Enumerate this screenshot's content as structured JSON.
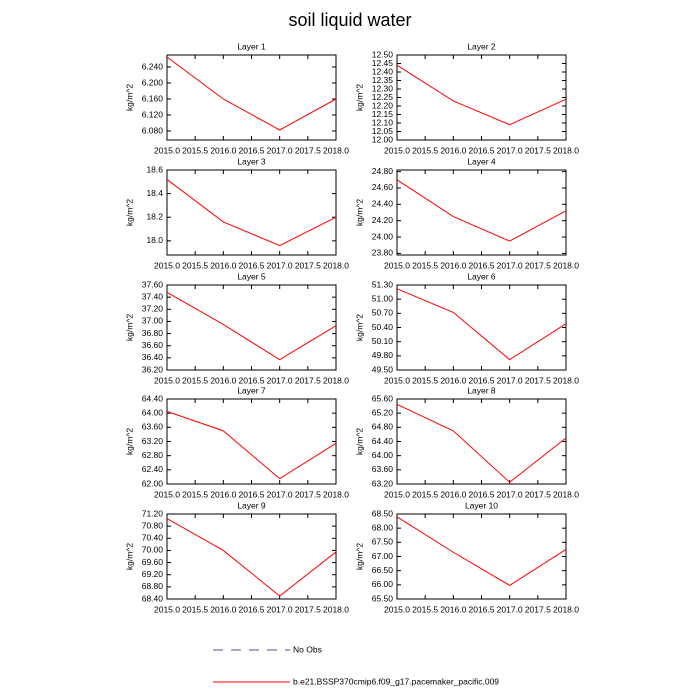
{
  "title": "soil liquid water",
  "legend": [
    {
      "label": "No Obs",
      "color": "#4b4b9b",
      "dashed": true
    },
    {
      "label": "b.e21.BSSP370cmip6.f09_g17.pacemaker_pacific.009",
      "color": "#ff0000",
      "dashed": false
    }
  ],
  "chart_data": [
    {
      "type": "line",
      "title": "Layer 1",
      "ylabel": "kg/m^2",
      "x": [
        2015,
        2016,
        2017,
        2018
      ],
      "series": [
        {
          "color": "#ff0000",
          "values": [
            6.265,
            6.16,
            6.0825,
            6.16
          ]
        }
      ],
      "xlim": [
        2015,
        2018
      ],
      "xticks": [
        {
          "value": 2015,
          "label": "2015.0"
        },
        {
          "value": 2015.5,
          "label": "2015.5"
        },
        {
          "value": 2016,
          "label": "2016.0"
        },
        {
          "value": 2016.5,
          "label": "2016.5"
        },
        {
          "value": 2017,
          "label": "2017.0"
        },
        {
          "value": 2017.5,
          "label": "2017.5"
        },
        {
          "value": 2018,
          "label": "2018.0"
        }
      ],
      "ylim": [
        6.0575,
        6.27
      ],
      "yticks": [
        {
          "value": 6.08,
          "label": "6.080"
        },
        {
          "value": 6.12,
          "label": "6.120"
        },
        {
          "value": 6.16,
          "label": "6.160"
        },
        {
          "value": 6.2,
          "label": "6.200"
        },
        {
          "value": 6.24,
          "label": "6.240"
        }
      ]
    },
    {
      "type": "line",
      "title": "Layer 2",
      "ylabel": "kg/m^2",
      "x": [
        2015,
        2016,
        2017,
        2018
      ],
      "series": [
        {
          "color": "#ff0000",
          "values": [
            12.44,
            12.23,
            12.09,
            12.24
          ]
        }
      ],
      "xlim": [
        2015,
        2018
      ],
      "xticks": [
        {
          "value": 2015,
          "label": "2015.0"
        },
        {
          "value": 2015.5,
          "label": "2015.5"
        },
        {
          "value": 2016,
          "label": "2016.0"
        },
        {
          "value": 2016.5,
          "label": "2016.5"
        },
        {
          "value": 2017,
          "label": "2017.0"
        },
        {
          "value": 2017.5,
          "label": "2017.5"
        },
        {
          "value": 2018,
          "label": "2018.0"
        }
      ],
      "ylim": [
        12.0,
        12.5
      ],
      "yticks": [
        {
          "value": 12.0,
          "label": "12.00"
        },
        {
          "value": 12.05,
          "label": "12.05"
        },
        {
          "value": 12.1,
          "label": "12.10"
        },
        {
          "value": 12.15,
          "label": "12.15"
        },
        {
          "value": 12.2,
          "label": "12.20"
        },
        {
          "value": 12.25,
          "label": "12.25"
        },
        {
          "value": 12.3,
          "label": "12.30"
        },
        {
          "value": 12.35,
          "label": "12.35"
        },
        {
          "value": 12.4,
          "label": "12.40"
        },
        {
          "value": 12.45,
          "label": "12.45"
        },
        {
          "value": 12.5,
          "label": "12.50"
        }
      ]
    },
    {
      "type": "line",
      "title": "Layer 3",
      "ylabel": "kg/m^2",
      "x": [
        2015,
        2016,
        2017,
        2018
      ],
      "series": [
        {
          "color": "#ff0000",
          "values": [
            18.52,
            18.16,
            17.96,
            18.2
          ]
        }
      ],
      "xlim": [
        2015,
        2018
      ],
      "xticks": [
        {
          "value": 2015,
          "label": "2015.0"
        },
        {
          "value": 2015.5,
          "label": "2015.5"
        },
        {
          "value": 2016,
          "label": "2016.0"
        },
        {
          "value": 2016.5,
          "label": "2016.5"
        },
        {
          "value": 2017,
          "label": "2017.0"
        },
        {
          "value": 2017.5,
          "label": "2017.5"
        },
        {
          "value": 2018,
          "label": "2018.0"
        }
      ],
      "ylim": [
        17.88,
        18.6
      ],
      "yticks": [
        {
          "value": 18,
          "label": "18.0"
        },
        18.2,
        18.4,
        18.6
      ]
    },
    {
      "type": "line",
      "title": "Layer 4",
      "ylabel": "kg/m^2",
      "x": [
        2015,
        2016,
        2017,
        2018
      ],
      "series": [
        {
          "color": "#ff0000",
          "values": [
            24.7,
            24.25,
            23.95,
            24.32
          ]
        }
      ],
      "xlim": [
        2015,
        2018
      ],
      "xticks": [
        {
          "value": 2015,
          "label": "2015.0"
        },
        {
          "value": 2015.5,
          "label": "2015.5"
        },
        {
          "value": 2016,
          "label": "2016.0"
        },
        {
          "value": 2016.5,
          "label": "2016.5"
        },
        {
          "value": 2017,
          "label": "2017.0"
        },
        {
          "value": 2017.5,
          "label": "2017.5"
        },
        {
          "value": 2018,
          "label": "2018.0"
        }
      ],
      "ylim": [
        23.78,
        24.82
      ],
      "yticks": [
        {
          "value": 23.8,
          "label": "23.80"
        },
        {
          "value": 24.0,
          "label": "24.00"
        },
        {
          "value": 24.2,
          "label": "24.20"
        },
        {
          "value": 24.4,
          "label": "24.40"
        },
        {
          "value": 24.6,
          "label": "24.60"
        },
        {
          "value": 24.8,
          "label": "24.80"
        }
      ]
    },
    {
      "type": "line",
      "title": "Layer 5",
      "ylabel": "kg/m^2",
      "x": [
        2015,
        2016,
        2017,
        2018
      ],
      "series": [
        {
          "color": "#ff0000",
          "values": [
            37.48,
            36.95,
            36.37,
            36.93
          ]
        }
      ],
      "xlim": [
        2015,
        2018
      ],
      "xticks": [
        {
          "value": 2015,
          "label": "2015.0"
        },
        {
          "value": 2015.5,
          "label": "2015.5"
        },
        {
          "value": 2016,
          "label": "2016.0"
        },
        {
          "value": 2016.5,
          "label": "2016.5"
        },
        {
          "value": 2017,
          "label": "2017.0"
        },
        {
          "value": 2017.5,
          "label": "2017.5"
        },
        {
          "value": 2018,
          "label": "2018.0"
        }
      ],
      "ylim": [
        36.2,
        37.6
      ],
      "yticks": [
        {
          "value": 36.2,
          "label": "36.20"
        },
        {
          "value": 36.4,
          "label": "36.40"
        },
        {
          "value": 36.6,
          "label": "36.60"
        },
        {
          "value": 36.8,
          "label": "36.80"
        },
        {
          "value": 37.0,
          "label": "37.00"
        },
        {
          "value": 37.2,
          "label": "37.20"
        },
        {
          "value": 37.4,
          "label": "37.40"
        },
        {
          "value": 37.6,
          "label": "37.60"
        }
      ]
    },
    {
      "type": "line",
      "title": "Layer 6",
      "ylabel": "kg/m^2",
      "x": [
        2015,
        2016,
        2017,
        2018
      ],
      "series": [
        {
          "color": "#ff0000",
          "values": [
            51.22,
            50.72,
            49.72,
            50.48
          ]
        }
      ],
      "xlim": [
        2015,
        2018
      ],
      "xticks": [
        {
          "value": 2015,
          "label": "2015.0"
        },
        {
          "value": 2015.5,
          "label": "2015.5"
        },
        {
          "value": 2016,
          "label": "2016.0"
        },
        {
          "value": 2016.5,
          "label": "2016.5"
        },
        {
          "value": 2017,
          "label": "2017.0"
        },
        {
          "value": 2017.5,
          "label": "2017.5"
        },
        {
          "value": 2018,
          "label": "2018.0"
        }
      ],
      "ylim": [
        49.5,
        51.3
      ],
      "yticks": [
        {
          "value": 49.5,
          "label": "49.50"
        },
        {
          "value": 49.8,
          "label": "49.80"
        },
        {
          "value": 50.1,
          "label": "50.10"
        },
        {
          "value": 50.4,
          "label": "50.40"
        },
        {
          "value": 50.7,
          "label": "50.70"
        },
        {
          "value": 51.0,
          "label": "51.00"
        },
        {
          "value": 51.3,
          "label": "51.30"
        }
      ]
    },
    {
      "type": "line",
      "title": "Layer 7",
      "ylabel": "kg/m^2",
      "x": [
        2015,
        2016,
        2017,
        2018
      ],
      "series": [
        {
          "color": "#ff0000",
          "values": [
            64.05,
            63.5,
            62.15,
            63.15
          ]
        }
      ],
      "xlim": [
        2015,
        2018
      ],
      "xticks": [
        {
          "value": 2015,
          "label": "2015.0"
        },
        {
          "value": 2015.5,
          "label": "2015.5"
        },
        {
          "value": 2016,
          "label": "2016.0"
        },
        {
          "value": 2016.5,
          "label": "2016.5"
        },
        {
          "value": 2017,
          "label": "2017.0"
        },
        {
          "value": 2017.5,
          "label": "2017.5"
        },
        {
          "value": 2018,
          "label": "2018.0"
        }
      ],
      "ylim": [
        62.0,
        64.4
      ],
      "yticks": [
        {
          "value": 62.0,
          "label": "62.00"
        },
        {
          "value": 62.4,
          "label": "62.40"
        },
        {
          "value": 62.8,
          "label": "62.80"
        },
        {
          "value": 63.2,
          "label": "63.20"
        },
        {
          "value": 63.6,
          "label": "63.60"
        },
        {
          "value": 64.0,
          "label": "64.00"
        },
        {
          "value": 64.4,
          "label": "64.40"
        }
      ]
    },
    {
      "type": "line",
      "title": "Layer 8",
      "ylabel": "kg/m^2",
      "x": [
        2015,
        2016,
        2017,
        2018
      ],
      "series": [
        {
          "color": "#ff0000",
          "values": [
            65.45,
            64.7,
            63.25,
            64.5
          ]
        }
      ],
      "xlim": [
        2015,
        2018
      ],
      "xticks": [
        {
          "value": 2015,
          "label": "2015.0"
        },
        {
          "value": 2015.5,
          "label": "2015.5"
        },
        {
          "value": 2016,
          "label": "2016.0"
        },
        {
          "value": 2016.5,
          "label": "2016.5"
        },
        {
          "value": 2017,
          "label": "2017.0"
        },
        {
          "value": 2017.5,
          "label": "2017.5"
        },
        {
          "value": 2018,
          "label": "2018.0"
        }
      ],
      "ylim": [
        63.2,
        65.6
      ],
      "yticks": [
        {
          "value": 63.2,
          "label": "63.20"
        },
        {
          "value": 63.6,
          "label": "63.60"
        },
        {
          "value": 64.0,
          "label": "64.00"
        },
        {
          "value": 64.4,
          "label": "64.40"
        },
        {
          "value": 64.8,
          "label": "64.80"
        },
        {
          "value": 65.2,
          "label": "65.20"
        },
        {
          "value": 65.6,
          "label": "65.60"
        }
      ]
    },
    {
      "type": "line",
      "title": "Layer 9",
      "ylabel": "kg/m^2",
      "x": [
        2015,
        2016,
        2017,
        2018
      ],
      "series": [
        {
          "color": "#ff0000",
          "values": [
            71.05,
            70.0,
            68.5,
            69.95
          ]
        }
      ],
      "xlim": [
        2015,
        2018
      ],
      "xticks": [
        {
          "value": 2015,
          "label": "2015.0"
        },
        {
          "value": 2015.5,
          "label": "2015.5"
        },
        {
          "value": 2016,
          "label": "2016.0"
        },
        {
          "value": 2016.5,
          "label": "2016.5"
        },
        {
          "value": 2017,
          "label": "2017.0"
        },
        {
          "value": 2017.5,
          "label": "2017.5"
        },
        {
          "value": 2018,
          "label": "2018.0"
        }
      ],
      "ylim": [
        68.4,
        71.2
      ],
      "yticks": [
        {
          "value": 68.4,
          "label": "68.40"
        },
        {
          "value": 68.8,
          "label": "68.80"
        },
        {
          "value": 69.2,
          "label": "69.20"
        },
        {
          "value": 69.6,
          "label": "69.60"
        },
        {
          "value": 70.0,
          "label": "70.00"
        },
        {
          "value": 70.4,
          "label": "70.40"
        },
        {
          "value": 70.8,
          "label": "70.80"
        },
        {
          "value": 71.2,
          "label": "71.20"
        }
      ]
    },
    {
      "type": "line",
      "title": "Layer 10",
      "ylabel": "kg/m^2",
      "x": [
        2015,
        2016,
        2017,
        2018
      ],
      "series": [
        {
          "color": "#ff0000",
          "values": [
            68.4,
            67.15,
            65.98,
            67.25
          ]
        }
      ],
      "xlim": [
        2015,
        2018
      ],
      "xticks": [
        {
          "value": 2015,
          "label": "2015.0"
        },
        {
          "value": 2015.5,
          "label": "2015.5"
        },
        {
          "value": 2016,
          "label": "2016.0"
        },
        {
          "value": 2016.5,
          "label": "2016.5"
        },
        {
          "value": 2017,
          "label": "2017.0"
        },
        {
          "value": 2017.5,
          "label": "2017.5"
        },
        {
          "value": 2018,
          "label": "2018.0"
        }
      ],
      "ylim": [
        65.5,
        68.5
      ],
      "yticks": [
        {
          "value": 65.5,
          "label": "65.50"
        },
        {
          "value": 66.0,
          "label": "66.00"
        },
        {
          "value": 66.5,
          "label": "66.50"
        },
        {
          "value": 67.0,
          "label": "67.00"
        },
        {
          "value": 67.5,
          "label": "67.50"
        },
        {
          "value": 68.0,
          "label": "68.00"
        },
        {
          "value": 68.5,
          "label": "68.50"
        }
      ]
    }
  ]
}
